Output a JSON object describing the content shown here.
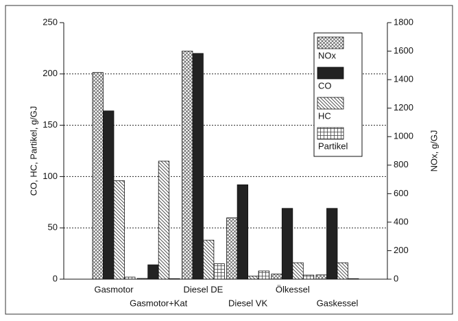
{
  "chart_data": {
    "type": "bar",
    "categories": [
      "Gasmotor",
      "Gasmotor+Kat",
      "Diesel DE",
      "Diesel VK",
      "Ölkessel",
      "Gaskessel"
    ],
    "series": [
      {
        "name": "NOx",
        "color": "#555555",
        "axis": "y2",
        "values": [
          1450,
          5,
          1600,
          430,
          36,
          30
        ]
      },
      {
        "name": "CO",
        "color": "#222222",
        "values": [
          164,
          14,
          220,
          92,
          69,
          69
        ]
      },
      {
        "name": "HC",
        "color": "#333333",
        "values": [
          96,
          115,
          38,
          3,
          16,
          16
        ]
      },
      {
        "name": "Partikel",
        "color": "#444444",
        "values": [
          2,
          0.5,
          15,
          8,
          4,
          0.5
        ]
      }
    ],
    "ylabel": "CO, HC, Partikel, g/GJ",
    "y2label": "NOx, g/GJ",
    "ylim": [
      0,
      250
    ],
    "yticks": [
      0,
      50,
      100,
      150,
      200,
      250
    ],
    "y2lim": [
      0,
      1800
    ],
    "y2ticks": [
      0,
      200,
      400,
      600,
      800,
      1000,
      1200,
      1400,
      1600,
      1800
    ],
    "grid": true,
    "legend": "upper right"
  }
}
